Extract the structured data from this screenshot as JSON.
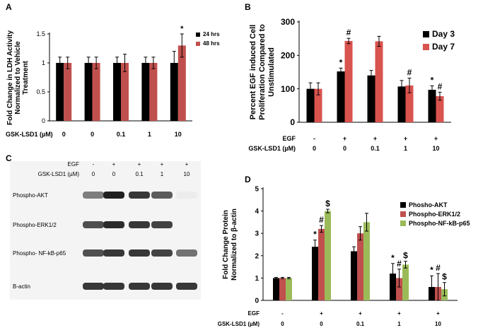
{
  "chart_data": [
    {
      "panel": "A",
      "type": "bar",
      "ylabel": "Fold Change in  LDH Activity Normalized to Vehicle Treatment",
      "ylabel_lines": [
        "Fold Change in  LDH Activity",
        "Normalized to Vehicle",
        "Treatment"
      ],
      "ylim": [
        0,
        1.5
      ],
      "yticks": [
        "0",
        "0.5",
        "1",
        "1.5"
      ],
      "condition_row_label": "GSK-LSD1 (µM)",
      "categories": [
        "0",
        "0",
        "0.1",
        "1",
        "10"
      ],
      "series": [
        {
          "name": "24 hrs",
          "color": "#000000",
          "values": [
            1.0,
            1.0,
            1.0,
            1.0,
            1.0
          ],
          "errors": [
            0.1,
            0.1,
            0.1,
            0.1,
            0.2
          ]
        },
        {
          "name": "48 hrs",
          "color": "#c0504d",
          "values": [
            1.0,
            1.0,
            1.0,
            1.0,
            1.3
          ],
          "errors": [
            0.1,
            0.1,
            0.15,
            0.1,
            0.2
          ]
        }
      ],
      "annotations": [
        {
          "series": 1,
          "index": 4,
          "text": "*"
        }
      ]
    },
    {
      "panel": "B",
      "type": "bar",
      "ylabel": "Percent EGF induced Cell Proliferation Compared to Unstimulated",
      "ylabel_lines": [
        "Percent EGF induced Cell",
        "Proliferation Compared to",
        "Unstimulated"
      ],
      "ylim": [
        0,
        300
      ],
      "yticks": [
        "0",
        "100",
        "200",
        "300"
      ],
      "condition_rows": [
        {
          "label": "EGF",
          "values": [
            "-",
            "+",
            "+",
            "+",
            "+"
          ]
        },
        {
          "label": "GSK-LSD1 (µM)",
          "values": [
            "0",
            "0",
            "0.1",
            "1",
            "10"
          ]
        }
      ],
      "series": [
        {
          "name": "Day 3",
          "color": "#000000",
          "values": [
            100,
            152,
            140,
            107,
            97
          ],
          "errors": [
            18,
            10,
            15,
            18,
            12
          ]
        },
        {
          "name": "Day 7",
          "color": "#d9534f",
          "values": [
            100,
            243,
            242,
            110,
            78
          ],
          "errors": [
            18,
            8,
            15,
            22,
            12
          ]
        }
      ],
      "annotations": [
        {
          "series": 0,
          "index": 1,
          "text": "*"
        },
        {
          "series": 1,
          "index": 1,
          "text": "#"
        },
        {
          "series": 1,
          "index": 3,
          "text": "#"
        },
        {
          "series": 0,
          "index": 4,
          "text": "*"
        },
        {
          "series": 1,
          "index": 4,
          "text": "#"
        }
      ]
    },
    {
      "panel": "D",
      "type": "bar",
      "ylabel": "Fold Change  Protein Normalized to β-actin",
      "ylabel_lines": [
        "Fold Change  Protein",
        "Normalized to β-actin"
      ],
      "ylim": [
        0,
        5
      ],
      "yticks": [
        "0",
        "1",
        "2",
        "3",
        "4",
        "5"
      ],
      "condition_rows": [
        {
          "label": "EGF",
          "values": [
            "-",
            "+",
            "+",
            "+",
            "+"
          ]
        },
        {
          "label": "GSK-LSD1 (µM)",
          "values": [
            "0",
            "0",
            "0.1",
            "1",
            "10"
          ]
        }
      ],
      "series": [
        {
          "name": "Phosho-AKT",
          "color": "#000000",
          "values": [
            1.0,
            2.4,
            2.2,
            1.2,
            0.6
          ],
          "errors": [
            0.03,
            0.3,
            0.2,
            0.45,
            0.5
          ]
        },
        {
          "name": "Phospho-ERK1/2",
          "color": "#c0504d",
          "values": [
            1.0,
            3.2,
            3.0,
            1.0,
            0.6
          ],
          "errors": [
            0.03,
            0.15,
            0.3,
            0.4,
            0.6
          ]
        },
        {
          "name": "Phospho-NF-kB-p65",
          "color": "#9bbb59",
          "values": [
            1.0,
            4.0,
            3.5,
            1.6,
            0.5
          ],
          "errors": [
            0.03,
            0.08,
            0.4,
            0.15,
            0.3
          ]
        }
      ],
      "annotations": [
        {
          "series": 0,
          "index": 1,
          "text": "*"
        },
        {
          "series": 1,
          "index": 1,
          "text": "#"
        },
        {
          "series": 2,
          "index": 1,
          "text": "$"
        },
        {
          "series": 0,
          "index": 3,
          "text": "*"
        },
        {
          "series": 1,
          "index": 3,
          "text": "#"
        },
        {
          "series": 2,
          "index": 3,
          "text": "$"
        },
        {
          "series": 0,
          "index": 4,
          "text": "*"
        },
        {
          "series": 1,
          "index": 4,
          "text": "#"
        },
        {
          "series": 2,
          "index": 4,
          "text": "$"
        }
      ]
    }
  ],
  "panel_labels": {
    "a": "A",
    "b": "B",
    "c": "C",
    "d": "D"
  },
  "blot": {
    "conditions": [
      {
        "label": "EGF",
        "values": [
          "-",
          "+",
          "+",
          "+",
          "+"
        ]
      },
      {
        "label": "GSK-LSD1 (µM)",
        "values": [
          "0",
          "0",
          "0.1",
          "1",
          "10"
        ]
      }
    ],
    "bands": [
      {
        "label": "Phospho-AKT",
        "intensity": [
          0.55,
          0.95,
          0.85,
          0.7,
          0.08
        ]
      },
      {
        "label": "Phospho-ERK1/2",
        "intensity": [
          0.75,
          0.9,
          0.85,
          0.8,
          0.0
        ]
      },
      {
        "label": "Phospho- NF-kB-p65",
        "intensity": [
          0.75,
          0.85,
          0.85,
          0.8,
          0.6
        ]
      },
      {
        "label": "B-actin",
        "intensity": [
          0.85,
          0.85,
          0.85,
          0.85,
          0.85
        ]
      }
    ]
  }
}
